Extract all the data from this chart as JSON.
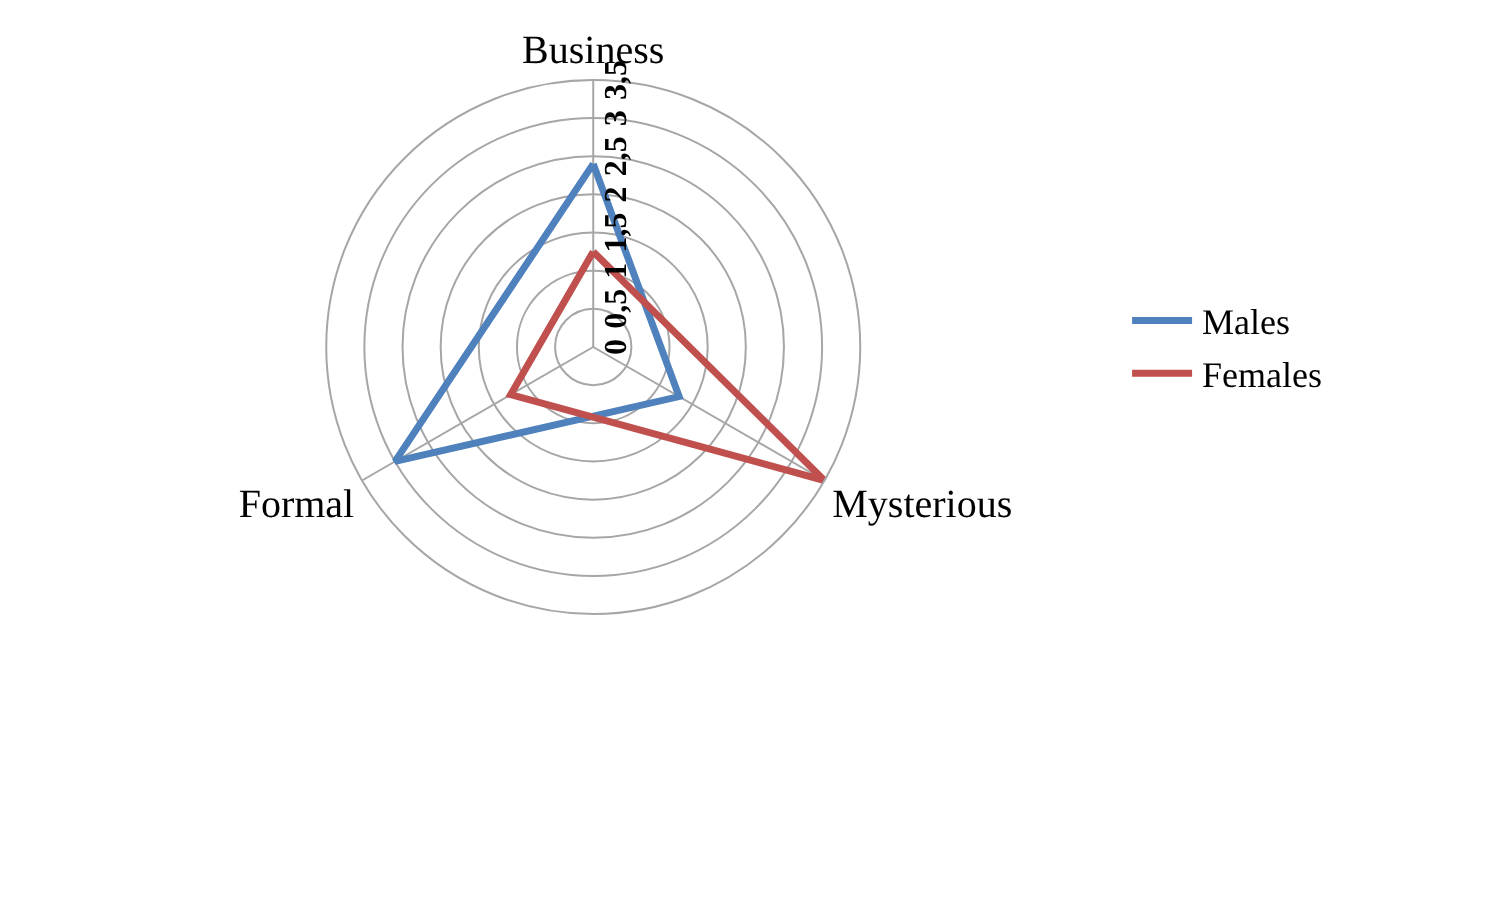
{
  "chart_data": {
    "type": "radar",
    "categories": [
      "Business",
      "Mysterious",
      "Formal"
    ],
    "series": [
      {
        "name": "Males",
        "color": "#4f81bd",
        "values": [
          2.4,
          1.3,
          3
        ]
      },
      {
        "name": "Females",
        "color": "#c0504d",
        "values": [
          1.25,
          3.5,
          1.25
        ]
      }
    ],
    "ylim": [
      0,
      3.5
    ],
    "yticks": [
      0,
      {
        "value": 0.5,
        "label": "0,5"
      },
      1,
      {
        "value": 1.5,
        "label": "1,5"
      },
      2,
      {
        "value": 2.5,
        "label": "2,5"
      },
      3,
      {
        "value": 3.5,
        "label": "3,5"
      }
    ],
    "grid": true,
    "legend": "right",
    "marker": "none",
    "line_style": "solid"
  }
}
